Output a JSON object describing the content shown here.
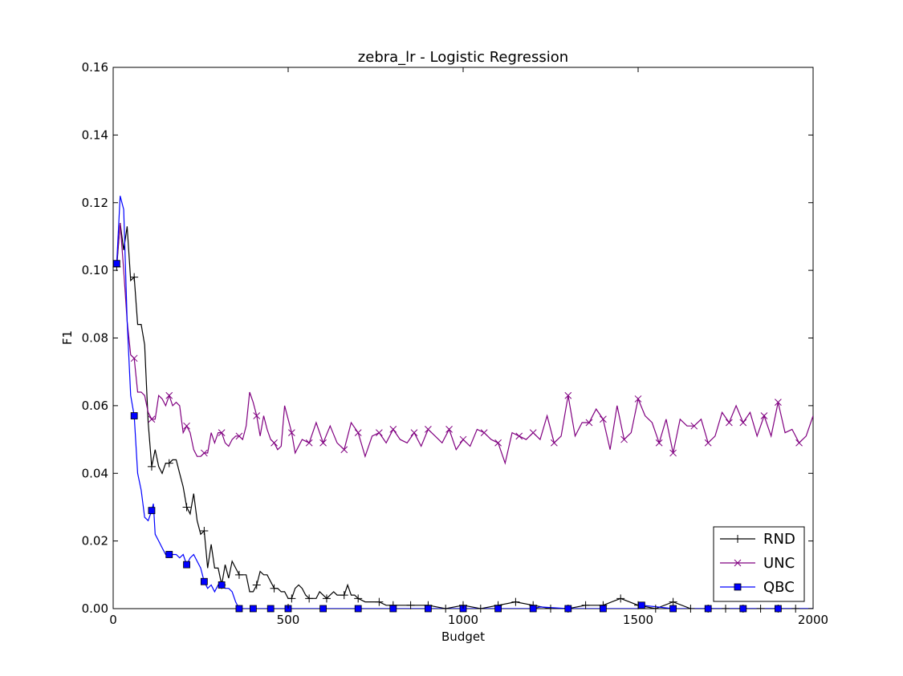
{
  "chart_data": {
    "type": "line",
    "title": "zebra_lr - Logistic Regression",
    "xlabel": "Budget",
    "ylabel": "F1",
    "xlim": [
      0,
      2000
    ],
    "ylim": [
      0,
      0.16
    ],
    "xticks": [
      0,
      500,
      1000,
      1500,
      2000
    ],
    "xtick_labels": [
      "0",
      "500",
      "1000",
      "1500",
      "2000"
    ],
    "yticks": [
      0,
      0.02,
      0.04,
      0.06,
      0.08,
      0.1,
      0.12,
      0.14,
      0.16
    ],
    "ytick_labels": [
      "0.00",
      "0.02",
      "0.04",
      "0.06",
      "0.08",
      "0.10",
      "0.12",
      "0.14",
      "0.16"
    ],
    "grid": false,
    "legend_position": "bottom-right",
    "series": [
      {
        "name": "RND",
        "color": "#000000",
        "marker": "plus",
        "x": [
          10,
          20,
          30,
          40,
          50,
          60,
          70,
          80,
          90,
          100,
          110,
          120,
          130,
          140,
          150,
          160,
          170,
          180,
          190,
          200,
          210,
          220,
          230,
          240,
          250,
          260,
          270,
          280,
          290,
          300,
          310,
          320,
          330,
          340,
          350,
          360,
          370,
          380,
          390,
          400,
          410,
          420,
          430,
          440,
          450,
          460,
          470,
          480,
          490,
          500,
          510,
          520,
          530,
          540,
          550,
          560,
          570,
          580,
          590,
          600,
          610,
          620,
          630,
          640,
          650,
          660,
          670,
          680,
          690,
          700,
          720,
          740,
          760,
          780,
          800,
          850,
          900,
          950,
          1000,
          1050,
          1100,
          1150,
          1200,
          1250,
          1300,
          1350,
          1400,
          1450,
          1500,
          1550,
          1600,
          1650,
          1700,
          1750,
          1800,
          1850,
          1900,
          1950,
          2000
        ],
        "y": [
          0.101,
          0.114,
          0.106,
          0.113,
          0.097,
          0.098,
          0.084,
          0.084,
          0.078,
          0.055,
          0.042,
          0.047,
          0.042,
          0.04,
          0.043,
          0.043,
          0.044,
          0.044,
          0.04,
          0.036,
          0.03,
          0.028,
          0.034,
          0.026,
          0.022,
          0.023,
          0.012,
          0.019,
          0.012,
          0.012,
          0.007,
          0.013,
          0.009,
          0.014,
          0.012,
          0.01,
          0.01,
          0.01,
          0.005,
          0.005,
          0.007,
          0.011,
          0.01,
          0.01,
          0.008,
          0.006,
          0.006,
          0.005,
          0.005,
          0.003,
          0.003,
          0.006,
          0.007,
          0.006,
          0.004,
          0.003,
          0.003,
          0.003,
          0.005,
          0.004,
          0.003,
          0.004,
          0.005,
          0.004,
          0.004,
          0.004,
          0.007,
          0.004,
          0.004,
          0.003,
          0.002,
          0.002,
          0.002,
          0.001,
          0.001,
          0.001,
          0.001,
          0.0,
          0.001,
          0.0,
          0.001,
          0.002,
          0.001,
          0.0,
          0.0,
          0.001,
          0.001,
          0.003,
          0.001,
          0.0,
          0.002,
          0.0,
          0.0,
          0.0,
          0.0,
          0.0,
          0.0,
          0.0,
          0.0
        ]
      },
      {
        "name": "UNC",
        "color": "#800080",
        "marker": "x",
        "x": [
          10,
          20,
          30,
          40,
          50,
          60,
          70,
          80,
          90,
          100,
          110,
          120,
          130,
          140,
          150,
          160,
          170,
          180,
          190,
          200,
          210,
          220,
          230,
          240,
          250,
          260,
          270,
          280,
          290,
          300,
          310,
          320,
          330,
          340,
          350,
          360,
          370,
          380,
          390,
          400,
          410,
          420,
          430,
          440,
          450,
          460,
          470,
          480,
          490,
          500,
          510,
          520,
          540,
          560,
          580,
          600,
          620,
          640,
          660,
          680,
          700,
          720,
          740,
          760,
          780,
          800,
          820,
          840,
          860,
          880,
          900,
          920,
          940,
          960,
          980,
          1000,
          1020,
          1040,
          1060,
          1080,
          1100,
          1120,
          1140,
          1160,
          1180,
          1200,
          1220,
          1240,
          1260,
          1280,
          1300,
          1320,
          1340,
          1360,
          1380,
          1400,
          1420,
          1440,
          1460,
          1480,
          1500,
          1520,
          1540,
          1560,
          1580,
          1600,
          1620,
          1640,
          1660,
          1680,
          1700,
          1720,
          1740,
          1760,
          1780,
          1800,
          1820,
          1840,
          1860,
          1880,
          1900,
          1920,
          1940,
          1960,
          1980,
          2000
        ],
        "y": [
          0.102,
          0.114,
          0.1,
          0.085,
          0.075,
          0.074,
          0.064,
          0.064,
          0.063,
          0.058,
          0.056,
          0.056,
          0.063,
          0.062,
          0.06,
          0.063,
          0.06,
          0.061,
          0.06,
          0.052,
          0.054,
          0.052,
          0.047,
          0.045,
          0.045,
          0.046,
          0.046,
          0.052,
          0.049,
          0.052,
          0.052,
          0.049,
          0.048,
          0.05,
          0.051,
          0.051,
          0.05,
          0.054,
          0.064,
          0.061,
          0.057,
          0.051,
          0.057,
          0.053,
          0.05,
          0.049,
          0.047,
          0.048,
          0.06,
          0.056,
          0.052,
          0.046,
          0.05,
          0.049,
          0.055,
          0.049,
          0.054,
          0.049,
          0.047,
          0.055,
          0.052,
          0.045,
          0.051,
          0.052,
          0.049,
          0.053,
          0.05,
          0.049,
          0.052,
          0.048,
          0.053,
          0.051,
          0.049,
          0.053,
          0.047,
          0.05,
          0.048,
          0.053,
          0.052,
          0.05,
          0.049,
          0.043,
          0.052,
          0.051,
          0.05,
          0.052,
          0.05,
          0.057,
          0.049,
          0.051,
          0.063,
          0.051,
          0.055,
          0.055,
          0.059,
          0.056,
          0.047,
          0.06,
          0.05,
          0.052,
          0.062,
          0.057,
          0.055,
          0.049,
          0.056,
          0.046,
          0.056,
          0.054,
          0.054,
          0.056,
          0.049,
          0.051,
          0.058,
          0.055,
          0.06,
          0.055,
          0.058,
          0.051,
          0.057,
          0.051,
          0.061,
          0.052,
          0.053,
          0.049,
          0.051,
          0.057
        ]
      },
      {
        "name": "QBC",
        "color": "#0000ff",
        "marker": "square",
        "x": [
          10,
          20,
          30,
          40,
          50,
          60,
          70,
          80,
          90,
          100,
          110,
          115,
          120,
          130,
          140,
          150,
          160,
          170,
          180,
          190,
          200,
          210,
          220,
          230,
          240,
          250,
          260,
          270,
          280,
          290,
          300,
          310,
          320,
          330,
          340,
          350,
          360,
          400,
          450,
          500,
          600,
          700,
          800,
          900,
          1000,
          1100,
          1200,
          1220,
          1300,
          1400,
          1500,
          1510,
          1600,
          1700,
          1800,
          1900,
          2000
        ],
        "y": [
          0.102,
          0.122,
          0.118,
          0.085,
          0.063,
          0.057,
          0.04,
          0.035,
          0.027,
          0.026,
          0.029,
          0.031,
          0.022,
          0.02,
          0.018,
          0.016,
          0.016,
          0.016,
          0.016,
          0.015,
          0.016,
          0.013,
          0.015,
          0.016,
          0.014,
          0.012,
          0.008,
          0.006,
          0.007,
          0.005,
          0.007,
          0.007,
          0.006,
          0.006,
          0.005,
          0.002,
          0.0,
          0.0,
          0.0,
          0.0,
          0.0,
          0.0,
          0.0,
          0.0,
          0.0,
          0.0,
          0.0,
          0.0005,
          0.0,
          0.0,
          0.0,
          0.001,
          0.0,
          0.0,
          0.0,
          0.0,
          0.0
        ]
      }
    ]
  }
}
